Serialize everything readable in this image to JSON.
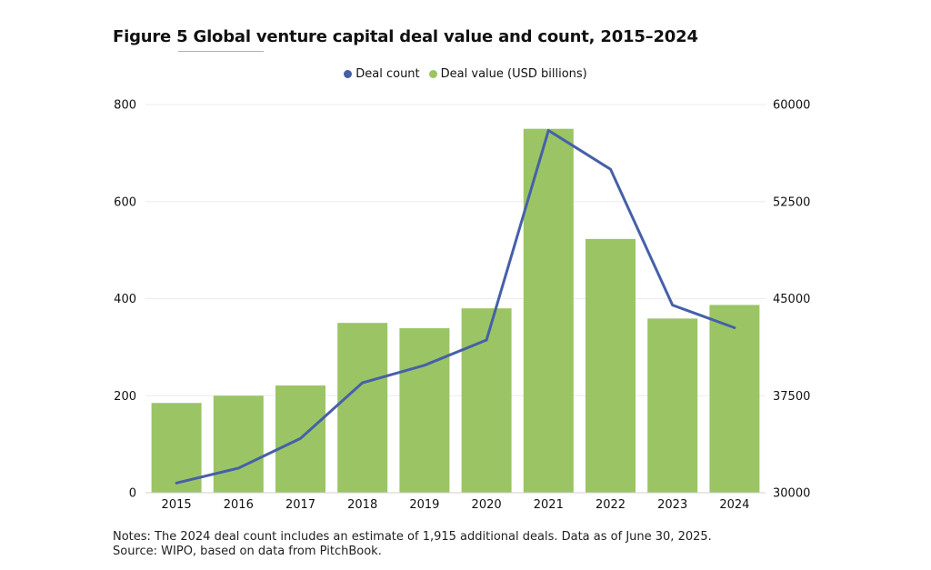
{
  "page": {
    "title": "Figure 5 Global venture capital deal value and count, 2015–2024",
    "notes": "Notes: The 2024 deal count includes an estimate of 1,915 additional deals. Data as of June 30, 2025.",
    "source": "Source: WIPO, based on data from PitchBook."
  },
  "chart_data": {
    "type": "bar",
    "title": "Figure 5 Global venture capital deal value and count, 2015–2024",
    "categories": [
      "2015",
      "2016",
      "2017",
      "2018",
      "2019",
      "2020",
      "2021",
      "2022",
      "2023",
      "2024"
    ],
    "series": [
      {
        "name": "Deal value (USD billions)",
        "type": "bar",
        "axis": "left",
        "color": "#9bc465",
        "values": [
          185,
          200,
          221,
          350,
          339,
          380,
          750,
          523,
          359,
          387
        ]
      },
      {
        "name": "Deal count",
        "type": "line",
        "axis": "right",
        "color": "#4660a8",
        "values": [
          30750,
          31900,
          34200,
          38500,
          39850,
          41800,
          58000,
          55000,
          44500,
          42750
        ]
      }
    ],
    "left_axis": {
      "min": 0,
      "max": 800,
      "ticks": [
        0,
        200,
        400,
        600,
        800
      ],
      "tick_labels": [
        "0",
        "200",
        "400",
        "600",
        "800"
      ]
    },
    "right_axis": {
      "min": 30000,
      "max": 60000,
      "ticks": [
        30000,
        37500,
        45000,
        52500,
        60000
      ],
      "tick_labels": [
        "30000",
        "37500",
        "45000",
        "52500",
        "60000"
      ]
    },
    "legend": [
      {
        "label": "Deal count",
        "color": "#4660a8"
      },
      {
        "label": "Deal value (USD billions)",
        "color": "#9bc465"
      }
    ],
    "legend_position": "top-center",
    "grid": true
  }
}
